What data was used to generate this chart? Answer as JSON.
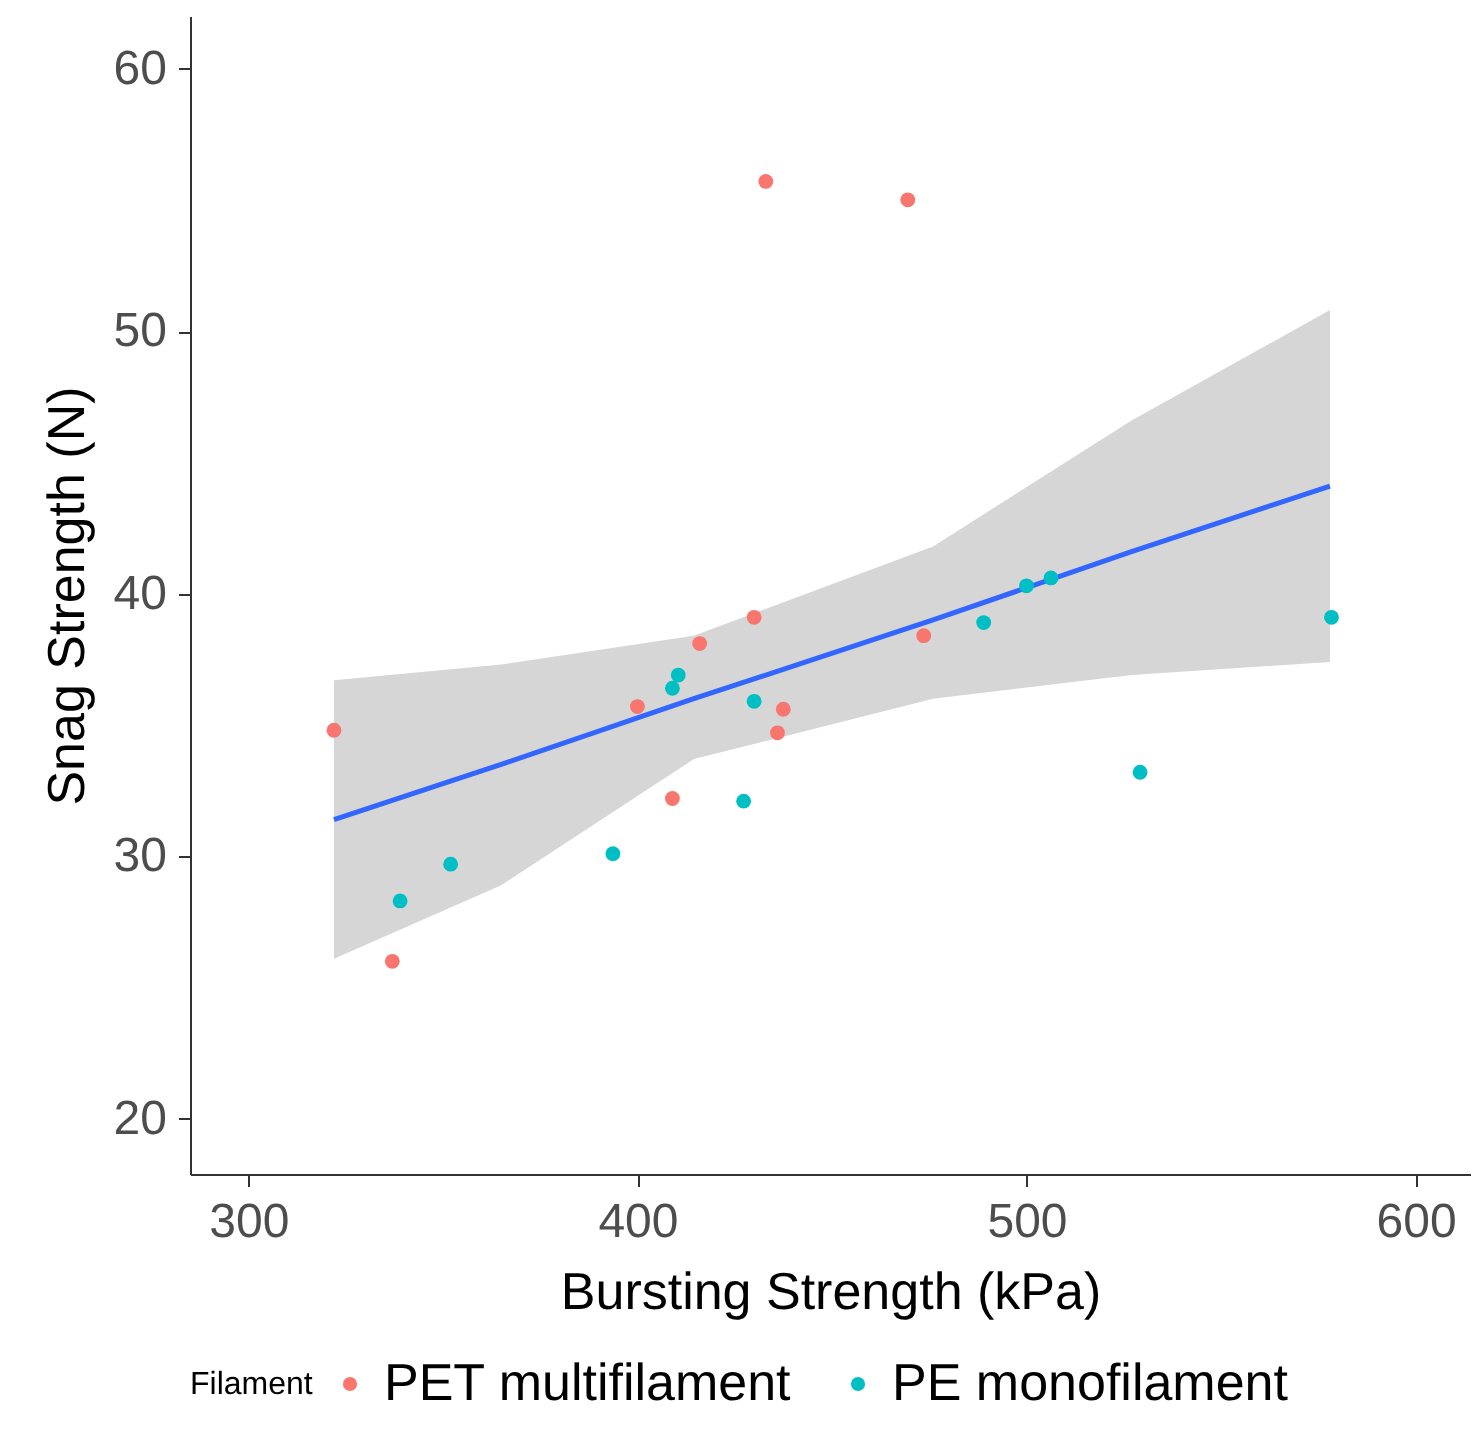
{
  "chart_data": {
    "type": "scatter",
    "xlabel": "Bursting Strength (kPa)",
    "ylabel": "Snag Strength (N)",
    "legend_title": "Filament",
    "legend": "bottom",
    "marker": "circle",
    "xlim": [
      285,
      614
    ],
    "ylim": [
      17.9,
      62
    ],
    "xticks": [
      300,
      400,
      500,
      600
    ],
    "yticks": [
      20,
      30,
      40,
      50,
      60
    ],
    "series": [
      {
        "name": "PET multifilament",
        "color": "#f8766d",
        "x": [
          322,
          337,
          400,
          409,
          416,
          430,
          433,
          437.5,
          436,
          469.5,
          473.6
        ],
        "values": [
          34.8,
          26.0,
          35.7,
          32.2,
          38.1,
          39.1,
          55.7,
          35.6,
          34.7,
          55.0,
          38.4
        ]
      },
      {
        "name": "PE monofilament",
        "color": "#00bfc4",
        "x": [
          339,
          352,
          393.7,
          409,
          410.5,
          427.3,
          430,
          489,
          500,
          506.3,
          529.2,
          578.4
        ],
        "values": [
          28.3,
          29.7,
          30.1,
          36.4,
          36.9,
          32.1,
          35.9,
          38.9,
          40.3,
          40.6,
          33.2,
          39.1
        ]
      },
      {
        "type": "line",
        "marker": "none",
        "color": "#3366ff",
        "x": [
          322,
          365,
          414.5,
          476,
          527,
          578
        ],
        "values": [
          31.4,
          33.5,
          36.0,
          39.0,
          41.6,
          44.1
        ],
        "lower": [
          26.1,
          28.9,
          33.7,
          36.0,
          36.9,
          37.4
        ],
        "upper": [
          36.7,
          37.3,
          38.4,
          41.8,
          46.6,
          50.8
        ]
      }
    ]
  }
}
